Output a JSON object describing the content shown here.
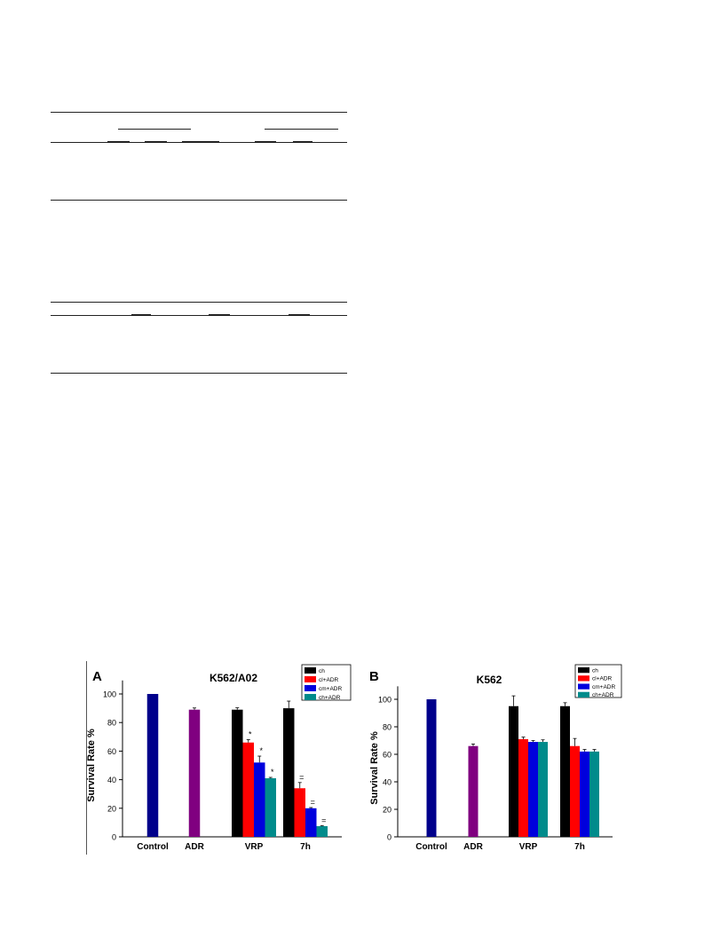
{
  "chart_data": [
    {
      "panel_label": "A",
      "type": "bar",
      "title": "K562/A02",
      "ylabel": "Survival Rate %",
      "xlabel": "",
      "ylim": [
        0,
        110
      ],
      "yticks": [
        0,
        20,
        40,
        60,
        80,
        100
      ],
      "categories": [
        "Control",
        "ADR",
        "VRP",
        "7h"
      ],
      "legend": [
        "ch",
        "cl+ADR",
        "cm+ADR",
        "ch+ADR"
      ],
      "legend_colors": [
        "#000000",
        "#ff0000",
        "#0000dd",
        "#008b8b"
      ],
      "legend_placement": "top-right",
      "grid": false,
      "bars": [
        {
          "category": "Control",
          "value": 100,
          "error": 0,
          "color": "#00008b",
          "annotation": ""
        },
        {
          "category": "ADR",
          "value": 89,
          "error": 1.2,
          "color": "#800080",
          "annotation": ""
        },
        {
          "category": "VRP",
          "series": "ch",
          "value": 89,
          "error": 1.3,
          "color": "#000000",
          "annotation": ""
        },
        {
          "category": "VRP",
          "series": "cl+ADR",
          "value": 66,
          "error": 2.0,
          "color": "#ff0000",
          "annotation": "*"
        },
        {
          "category": "VRP",
          "series": "cm+ADR",
          "value": 52,
          "error": 4.5,
          "color": "#0000dd",
          "annotation": "*"
        },
        {
          "category": "VRP",
          "series": "ch+ADR",
          "value": 41,
          "error": 0.6,
          "color": "#008b8b",
          "annotation": "*"
        },
        {
          "category": "7h",
          "series": "ch",
          "value": 90,
          "error": 5.0,
          "color": "#000000",
          "annotation": ""
        },
        {
          "category": "7h",
          "series": "cl+ADR",
          "value": 34,
          "error": 4.0,
          "color": "#ff0000",
          "annotation": "="
        },
        {
          "category": "7h",
          "series": "cm+ADR",
          "value": 20,
          "error": 0.5,
          "color": "#0000dd",
          "annotation": "="
        },
        {
          "category": "7h",
          "series": "ch+ADR",
          "value": 7.5,
          "error": 0.4,
          "color": "#008b8b",
          "annotation": "="
        }
      ]
    },
    {
      "panel_label": "B",
      "type": "bar",
      "title": "K562",
      "ylabel": "Survival Rate %",
      "xlabel": "",
      "ylim": [
        0,
        110
      ],
      "yticks": [
        0,
        20,
        40,
        60,
        80,
        100
      ],
      "categories": [
        "Control",
        "ADR",
        "VRP",
        "7h"
      ],
      "legend": [
        "ch",
        "cl+ADR",
        "cm+ADR",
        "ch+ADR"
      ],
      "legend_colors": [
        "#000000",
        "#ff0000",
        "#0000dd",
        "#008b8b"
      ],
      "legend_placement": "top-right",
      "grid": false,
      "bars": [
        {
          "category": "Control",
          "value": 100,
          "error": 0,
          "color": "#00008b",
          "annotation": ""
        },
        {
          "category": "ADR",
          "value": 66,
          "error": 1.5,
          "color": "#800080",
          "annotation": ""
        },
        {
          "category": "VRP",
          "series": "ch",
          "value": 95,
          "error": 7.5,
          "color": "#000000",
          "annotation": ""
        },
        {
          "category": "VRP",
          "series": "cl+ADR",
          "value": 71,
          "error": 1.5,
          "color": "#ff0000",
          "annotation": ""
        },
        {
          "category": "VRP",
          "series": "cm+ADR",
          "value": 69,
          "error": 1.0,
          "color": "#0000dd",
          "annotation": ""
        },
        {
          "category": "VRP",
          "series": "ch+ADR",
          "value": 69,
          "error": 1.5,
          "color": "#008b8b",
          "annotation": ""
        },
        {
          "category": "7h",
          "series": "ch",
          "value": 95,
          "error": 2.5,
          "color": "#000000",
          "annotation": ""
        },
        {
          "category": "7h",
          "series": "cl+ADR",
          "value": 66,
          "error": 5.5,
          "color": "#ff0000",
          "annotation": ""
        },
        {
          "category": "7h",
          "series": "cm+ADR",
          "value": 62,
          "error": 1.5,
          "color": "#0000dd",
          "annotation": ""
        },
        {
          "category": "7h",
          "series": "ch+ADR",
          "value": 62,
          "error": 1.5,
          "color": "#008b8b",
          "annotation": ""
        }
      ]
    }
  ]
}
